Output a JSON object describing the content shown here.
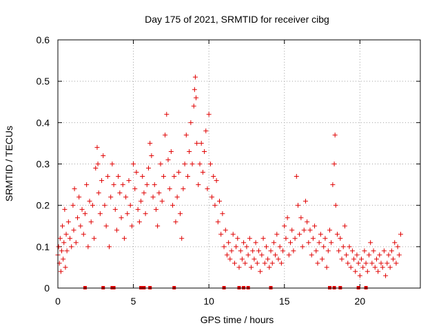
{
  "chart_data": {
    "type": "scatter",
    "title": "Day 175 of 2021, SRMTID for receiver cibg",
    "xlabel": "GPS time / hours",
    "ylabel": "SRMTID / TECUs",
    "xlim": [
      0,
      24
    ],
    "ylim": [
      0,
      0.6
    ],
    "xticks": [
      0,
      5,
      10,
      15,
      20
    ],
    "xtick_labels": [
      "0",
      "5",
      "10",
      "15",
      "20"
    ],
    "yticks": [
      0,
      0.1,
      0.2,
      0.3,
      0.4,
      0.5,
      0.6
    ],
    "ytick_labels": [
      "0",
      "0.1",
      "0.2",
      "0.3",
      "0.4",
      "0.5",
      "0.6"
    ],
    "grid": true,
    "marker": "plus",
    "color": "#e00000",
    "series": [
      {
        "name": "SRMTID",
        "points": [
          [
            0.0,
            0.08
          ],
          [
            0.05,
            0.1
          ],
          [
            0.1,
            0.06
          ],
          [
            0.15,
            0.12
          ],
          [
            0.2,
            0.04
          ],
          [
            0.25,
            0.09
          ],
          [
            0.3,
            0.15
          ],
          [
            0.35,
            0.07
          ],
          [
            0.4,
            0.11
          ],
          [
            0.45,
            0.19
          ],
          [
            0.5,
            0.05
          ],
          [
            0.55,
            0.13
          ],
          [
            0.6,
            0.09
          ],
          [
            0.7,
            0.16
          ],
          [
            0.8,
            0.12
          ],
          [
            0.9,
            0.1
          ],
          [
            1.0,
            0.2
          ],
          [
            1.05,
            0.14
          ],
          [
            1.1,
            0.24
          ],
          [
            1.2,
            0.11
          ],
          [
            1.3,
            0.17
          ],
          [
            1.4,
            0.22
          ],
          [
            1.5,
            0.15
          ],
          [
            1.6,
            0.19
          ],
          [
            1.7,
            0.13
          ],
          [
            1.8,
            0.18
          ],
          [
            1.9,
            0.25
          ],
          [
            2.0,
            0.1
          ],
          [
            2.1,
            0.21
          ],
          [
            2.2,
            0.16
          ],
          [
            2.3,
            0.2
          ],
          [
            2.4,
            0.12
          ],
          [
            2.5,
            0.29
          ],
          [
            2.6,
            0.34
          ],
          [
            2.65,
            0.3
          ],
          [
            2.7,
            0.23
          ],
          [
            2.8,
            0.18
          ],
          [
            2.9,
            0.26
          ],
          [
            3.0,
            0.32
          ],
          [
            3.1,
            0.2
          ],
          [
            3.2,
            0.15
          ],
          [
            3.3,
            0.27
          ],
          [
            3.4,
            0.1
          ],
          [
            3.5,
            0.22
          ],
          [
            3.6,
            0.3
          ],
          [
            3.7,
            0.25
          ],
          [
            3.8,
            0.19
          ],
          [
            3.9,
            0.14
          ],
          [
            4.0,
            0.27
          ],
          [
            4.1,
            0.23
          ],
          [
            4.2,
            0.17
          ],
          [
            4.3,
            0.25
          ],
          [
            4.4,
            0.12
          ],
          [
            4.5,
            0.22
          ],
          [
            4.6,
            0.18
          ],
          [
            4.7,
            0.26
          ],
          [
            4.8,
            0.2
          ],
          [
            4.9,
            0.15
          ],
          [
            5.0,
            0.3
          ],
          [
            5.1,
            0.24
          ],
          [
            5.2,
            0.28
          ],
          [
            5.3,
            0.19
          ],
          [
            5.4,
            0.16
          ],
          [
            5.5,
            0.21
          ],
          [
            5.6,
            0.27
          ],
          [
            5.7,
            0.23
          ],
          [
            5.8,
            0.18
          ],
          [
            5.9,
            0.25
          ],
          [
            6.0,
            0.29
          ],
          [
            6.1,
            0.35
          ],
          [
            6.2,
            0.32
          ],
          [
            6.3,
            0.22
          ],
          [
            6.4,
            0.25
          ],
          [
            6.5,
            0.19
          ],
          [
            6.6,
            0.15
          ],
          [
            6.7,
            0.23
          ],
          [
            6.8,
            0.3
          ],
          [
            6.9,
            0.21
          ],
          [
            7.0,
            0.27
          ],
          [
            7.1,
            0.37
          ],
          [
            7.2,
            0.42
          ],
          [
            7.3,
            0.31
          ],
          [
            7.4,
            0.24
          ],
          [
            7.5,
            0.33
          ],
          [
            7.6,
            0.2
          ],
          [
            7.7,
            0.27
          ],
          [
            7.8,
            0.16
          ],
          [
            7.9,
            0.22
          ],
          [
            8.0,
            0.28
          ],
          [
            8.1,
            0.18
          ],
          [
            8.2,
            0.12
          ],
          [
            8.3,
            0.24
          ],
          [
            8.4,
            0.3
          ],
          [
            8.5,
            0.37
          ],
          [
            8.6,
            0.27
          ],
          [
            8.7,
            0.33
          ],
          [
            8.8,
            0.4
          ],
          [
            8.9,
            0.3
          ],
          [
            9.0,
            0.44
          ],
          [
            9.05,
            0.48
          ],
          [
            9.1,
            0.51
          ],
          [
            9.15,
            0.46
          ],
          [
            9.2,
            0.35
          ],
          [
            9.3,
            0.25
          ],
          [
            9.4,
            0.3
          ],
          [
            9.5,
            0.35
          ],
          [
            9.6,
            0.28
          ],
          [
            9.7,
            0.33
          ],
          [
            9.8,
            0.38
          ],
          [
            9.9,
            0.24
          ],
          [
            10.0,
            0.42
          ],
          [
            10.1,
            0.3
          ],
          [
            10.2,
            0.22
          ],
          [
            10.3,
            0.27
          ],
          [
            10.4,
            0.2
          ],
          [
            10.5,
            0.26
          ],
          [
            10.6,
            0.16
          ],
          [
            10.7,
            0.21
          ],
          [
            10.8,
            0.13
          ],
          [
            10.9,
            0.18
          ],
          [
            11.0,
            0.1
          ],
          [
            11.1,
            0.14
          ],
          [
            11.2,
            0.08
          ],
          [
            11.3,
            0.11
          ],
          [
            11.4,
            0.07
          ],
          [
            11.5,
            0.09
          ],
          [
            11.6,
            0.13
          ],
          [
            11.7,
            0.06
          ],
          [
            11.8,
            0.1
          ],
          [
            11.9,
            0.12
          ],
          [
            12.0,
            0.05
          ],
          [
            12.1,
            0.09
          ],
          [
            12.2,
            0.07
          ],
          [
            12.3,
            0.11
          ],
          [
            12.4,
            0.06
          ],
          [
            12.5,
            0.1
          ],
          [
            12.6,
            0.08
          ],
          [
            12.7,
            0.12
          ],
          [
            12.8,
            0.05
          ],
          [
            12.9,
            0.09
          ],
          [
            13.0,
            0.07
          ],
          [
            13.1,
            0.11
          ],
          [
            13.2,
            0.06
          ],
          [
            13.3,
            0.09
          ],
          [
            13.4,
            0.04
          ],
          [
            13.5,
            0.08
          ],
          [
            13.6,
            0.12
          ],
          [
            13.7,
            0.06
          ],
          [
            13.8,
            0.1
          ],
          [
            13.9,
            0.07
          ],
          [
            14.0,
            0.05
          ],
          [
            14.1,
            0.09
          ],
          [
            14.2,
            0.06
          ],
          [
            14.3,
            0.11
          ],
          [
            14.4,
            0.08
          ],
          [
            14.5,
            0.13
          ],
          [
            14.6,
            0.07
          ],
          [
            14.7,
            0.1
          ],
          [
            14.8,
            0.06
          ],
          [
            14.9,
            0.09
          ],
          [
            15.0,
            0.15
          ],
          [
            15.1,
            0.12
          ],
          [
            15.2,
            0.17
          ],
          [
            15.3,
            0.08
          ],
          [
            15.4,
            0.11
          ],
          [
            15.5,
            0.14
          ],
          [
            15.6,
            0.09
          ],
          [
            15.7,
            0.12
          ],
          [
            15.8,
            0.27
          ],
          [
            15.9,
            0.2
          ],
          [
            16.0,
            0.13
          ],
          [
            16.1,
            0.17
          ],
          [
            16.2,
            0.1
          ],
          [
            16.3,
            0.14
          ],
          [
            16.4,
            0.21
          ],
          [
            16.5,
            0.16
          ],
          [
            16.6,
            0.11
          ],
          [
            16.7,
            0.14
          ],
          [
            16.8,
            0.08
          ],
          [
            16.9,
            0.12
          ],
          [
            17.0,
            0.15
          ],
          [
            17.1,
            0.09
          ],
          [
            17.2,
            0.06
          ],
          [
            17.3,
            0.11
          ],
          [
            17.4,
            0.13
          ],
          [
            17.5,
            0.07
          ],
          [
            17.6,
            0.1
          ],
          [
            17.7,
            0.12
          ],
          [
            17.8,
            0.05
          ],
          [
            17.9,
            0.09
          ],
          [
            18.0,
            0.14
          ],
          [
            18.1,
            0.11
          ],
          [
            18.2,
            0.25
          ],
          [
            18.3,
            0.3
          ],
          [
            18.35,
            0.37
          ],
          [
            18.4,
            0.2
          ],
          [
            18.5,
            0.13
          ],
          [
            18.6,
            0.09
          ],
          [
            18.7,
            0.12
          ],
          [
            18.8,
            0.07
          ],
          [
            18.9,
            0.1
          ],
          [
            19.0,
            0.15
          ],
          [
            19.1,
            0.08
          ],
          [
            19.2,
            0.06
          ],
          [
            19.3,
            0.1
          ],
          [
            19.4,
            0.05
          ],
          [
            19.5,
            0.09
          ],
          [
            19.6,
            0.07
          ],
          [
            19.7,
            0.04
          ],
          [
            19.8,
            0.08
          ],
          [
            19.9,
            0.06
          ],
          [
            20.0,
            0.03
          ],
          [
            20.1,
            0.07
          ],
          [
            20.2,
            0.05
          ],
          [
            20.3,
            0.09
          ],
          [
            20.4,
            0.06
          ],
          [
            20.5,
            0.04
          ],
          [
            20.6,
            0.08
          ],
          [
            20.7,
            0.11
          ],
          [
            20.8,
            0.06
          ],
          [
            20.9,
            0.09
          ],
          [
            21.0,
            0.05
          ],
          [
            21.1,
            0.07
          ],
          [
            21.2,
            0.04
          ],
          [
            21.3,
            0.08
          ],
          [
            21.4,
            0.06
          ],
          [
            21.5,
            0.05
          ],
          [
            21.6,
            0.09
          ],
          [
            21.7,
            0.03
          ],
          [
            21.8,
            0.06
          ],
          [
            21.9,
            0.08
          ],
          [
            22.0,
            0.05
          ],
          [
            22.1,
            0.09
          ],
          [
            22.2,
            0.07
          ],
          [
            22.3,
            0.11
          ],
          [
            22.4,
            0.06
          ],
          [
            22.5,
            0.1
          ],
          [
            22.6,
            0.08
          ],
          [
            22.7,
            0.13
          ]
        ]
      }
    ],
    "baseline_markers_x": [
      1.8,
      3.0,
      3.6,
      3.7,
      5.5,
      5.7,
      6.1,
      7.7,
      11.0,
      12.0,
      12.3,
      12.6,
      14.1,
      18.0,
      18.3,
      18.7,
      19.9,
      20.4
    ]
  }
}
